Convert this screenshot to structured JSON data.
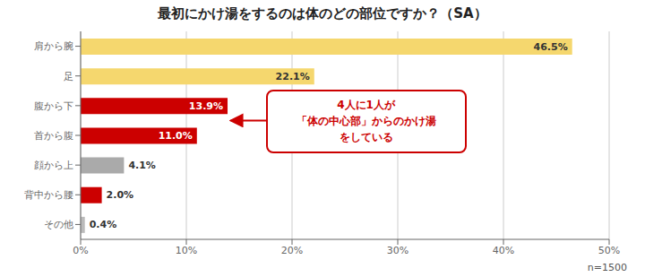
{
  "chart_data": {
    "type": "bar",
    "orientation": "horizontal",
    "title": "最初にかけ湯をするのは体のどの部位ですか？（SA）",
    "categories": [
      "肩から腕",
      "足",
      "腹から下",
      "首から腹",
      "顔から上",
      "背中から腰",
      "その他"
    ],
    "values": [
      46.5,
      22.1,
      13.9,
      11.0,
      4.1,
      2.0,
      0.4
    ],
    "value_labels": [
      "46.5%",
      "22.1%",
      "13.9%",
      "11.0%",
      "4.1%",
      "2.0%",
      "0.4%"
    ],
    "colors": [
      "#F5D76E",
      "#F5D76E",
      "#CC0000",
      "#CC0000",
      "#AAAAAA",
      "#CC0000",
      "#BBBBBB"
    ],
    "xlim": [
      0,
      50
    ],
    "xticks": [
      {
        "value": 0,
        "label": "0%"
      },
      {
        "value": 10,
        "label": "10%"
      },
      {
        "value": 20,
        "label": "20%"
      },
      {
        "value": 30,
        "label": "30%"
      },
      {
        "value": 40,
        "label": "40%"
      },
      {
        "value": 50,
        "label": "50%"
      }
    ],
    "grid": true,
    "data_labels": true,
    "annotations": [
      "4人に1人が\n「体の中心部」からのかけ湯\nをしている",
      "n=1500"
    ]
  }
}
